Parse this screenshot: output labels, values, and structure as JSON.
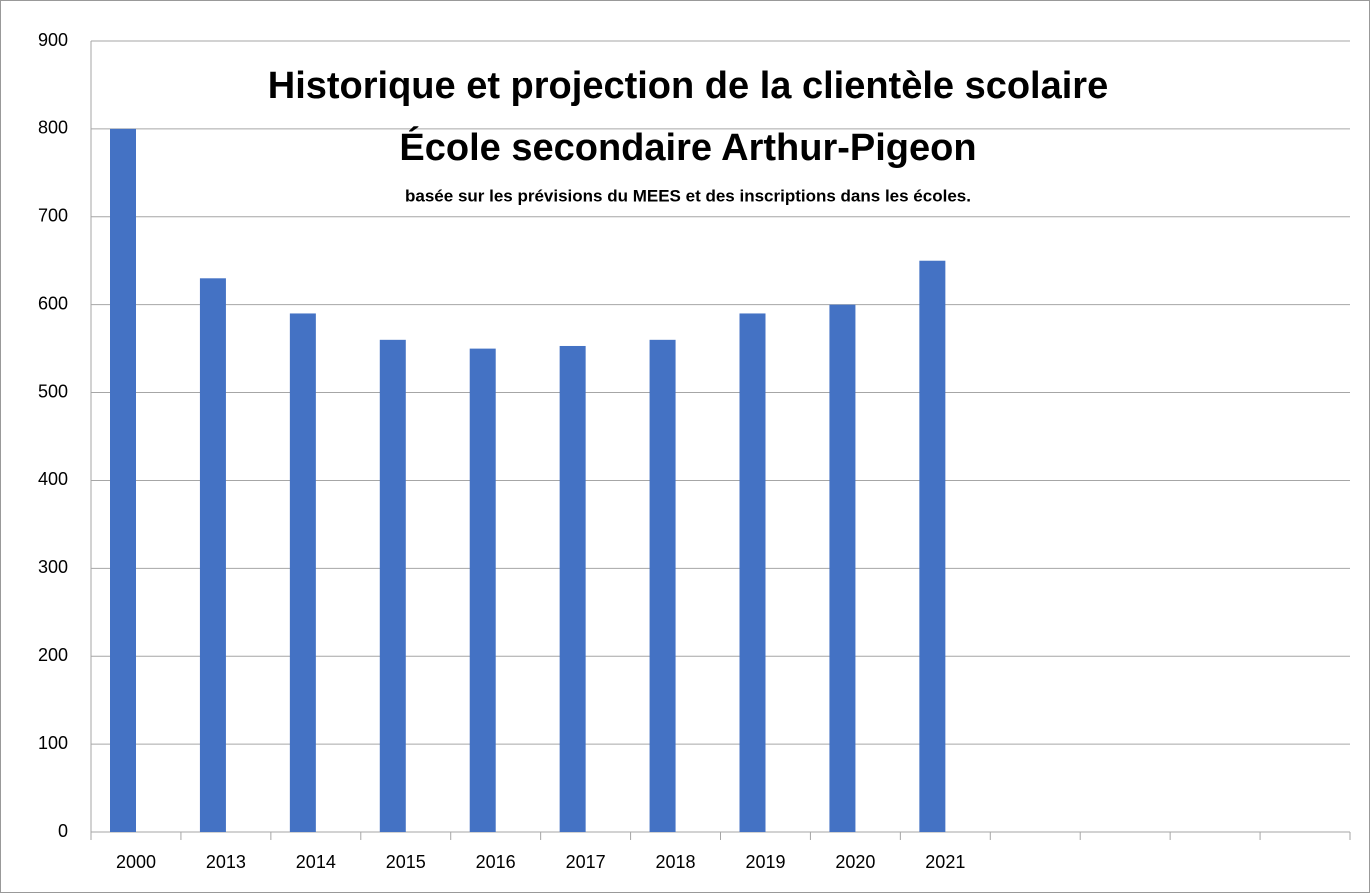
{
  "chart_data": {
    "type": "bar",
    "title": "Historique et projection de la clientèle scolaire",
    "subtitle": "École secondaire Arthur-Pigeon",
    "annotation": "basée sur les prévisions du MEES et des inscriptions dans les écoles.",
    "categories": [
      "2000",
      "2013",
      "2014",
      "2015",
      "2016",
      "2017",
      "2018",
      "2019",
      "2020",
      "2021",
      null,
      null,
      null,
      null
    ],
    "values": [
      800,
      630,
      590,
      560,
      550,
      553,
      560,
      590,
      600,
      650,
      null,
      null,
      null,
      null
    ],
    "color": "#4472c4",
    "ylim": [
      0,
      900
    ],
    "yticks": [
      0,
      100,
      200,
      300,
      400,
      500,
      600,
      700,
      800,
      900
    ],
    "grid": true
  }
}
